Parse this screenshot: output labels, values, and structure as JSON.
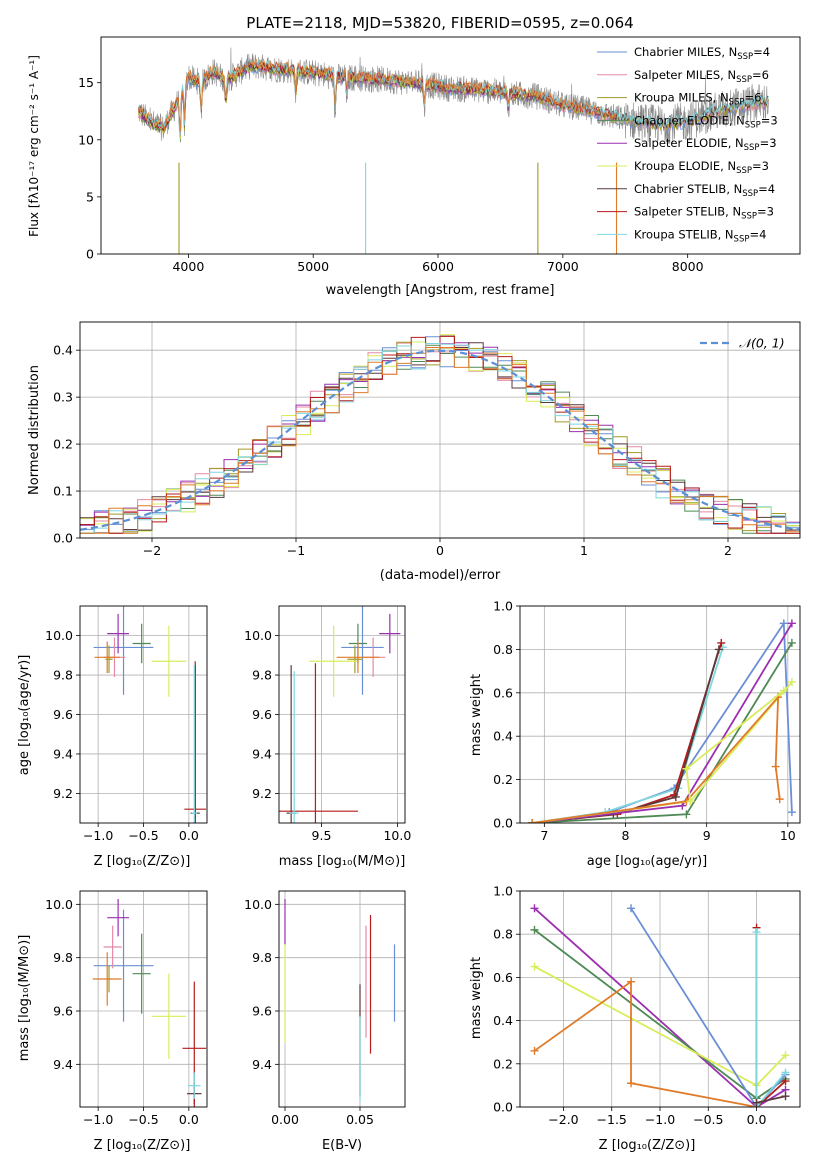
{
  "figure": {
    "title": "PLATE=2118, MJD=53820, FIBERID=0595, z=0.064"
  },
  "colors": {
    "Chabrier MILES": "#6a8fd6",
    "Salpeter MILES": "#e58aa6",
    "Kroupa MILES": "#a29a24",
    "Chabrier ELODIE": "#4f8a56",
    "Salpeter ELODIE": "#9c2fb0",
    "Kroupa ELODIE": "#d9ec5a",
    "Chabrier STELIB": "#5a3a3a",
    "Salpeter STELIB": "#b51c1c",
    "Kroupa STELIB": "#7fd8e0",
    "orange": "#e07b2a",
    "gray_spec": "#888888",
    "gauss": "#5b8fd6"
  },
  "chart_data": [
    {
      "id": "spectrum",
      "type": "line",
      "title": "PLATE=2118, MJD=53820, FIBERID=0595, z=0.064",
      "xlabel": "wavelength [Angstrom, rest frame]",
      "ylabel": "Flux [fλ10⁻¹⁷ erg cm⁻² s⁻¹ A⁻¹]",
      "xlim": [
        3300,
        8900
      ],
      "ylim": [
        0,
        19
      ],
      "xticks": [
        "4000",
        "5000",
        "6000",
        "7000",
        "8000"
      ],
      "yticks": [
        "0",
        "5",
        "10",
        "15"
      ],
      "legend_position": "upper right",
      "legend": [
        "Chabrier MILES, N_SSP=4",
        "Salpeter MILES, N_SSP=6",
        "Kroupa MILES, N_SSP=6",
        "Chabrier ELODIE, N_SSP=3",
        "Salpeter ELODIE, N_SSP=3",
        "Kroupa ELODIE, N_SSP=3",
        "Chabrier STELIB, N_SSP=4",
        "Salpeter STELIB, N_SSP=3",
        "Kroupa STELIB, N_SSP=4"
      ],
      "continuum": {
        "x": [
          3600,
          3700,
          3800,
          3900,
          4000,
          4100,
          4200,
          4300,
          4500,
          4700,
          4900,
          5200,
          5500,
          5800,
          6100,
          6400,
          6600,
          6800,
          7000,
          7200,
          7400,
          7600,
          7800,
          8000,
          8200,
          8400,
          8600
        ],
        "y": [
          12.5,
          11.5,
          11.0,
          13.0,
          15.5,
          15.0,
          16.0,
          15.2,
          16.5,
          16.2,
          16.0,
          15.5,
          15.3,
          15.0,
          14.5,
          14.3,
          14.0,
          13.8,
          13.0,
          12.6,
          12.0,
          11.6,
          11.3,
          11.6,
          12.4,
          12.9,
          13.3
        ]
      }
    },
    {
      "id": "residuals",
      "type": "line",
      "xlabel": "(data-model)/error",
      "ylabel": "Normed distribution",
      "xlim": [
        -2.5,
        2.5
      ],
      "ylim": [
        0,
        0.46
      ],
      "xticks": [
        "−2",
        "−1",
        "0",
        "1",
        "2"
      ],
      "yticks": [
        "0.0",
        "0.1",
        "0.2",
        "0.3",
        "0.4"
      ],
      "grid": true,
      "legend": [
        "𝒩(0, 1)"
      ],
      "legend_position": "upper right",
      "bin_width": 0.1,
      "bin_start": -2.5
    },
    {
      "id": "z_age",
      "type": "scatter",
      "xlabel": "Z [log₁₀(Z/Z⊙)]",
      "ylabel": "age  [log₁₀(age/yr)]",
      "xlim": [
        -1.2,
        0.2
      ],
      "ylim": [
        9.05,
        10.15
      ],
      "xticks": [
        "−1.0",
        "−0.5",
        "0.0"
      ],
      "yticks": [
        "9.2",
        "9.4",
        "9.6",
        "9.8",
        "10.0"
      ],
      "grid": true,
      "points": [
        {
          "series": "Chabrier MILES",
          "x": -0.72,
          "y": 9.94,
          "dx": 0.33,
          "dy": 0.24
        },
        {
          "series": "Salpeter MILES",
          "x": -0.82,
          "y": 9.89,
          "dx": 0.12,
          "dy": 0.1
        },
        {
          "series": "Kroupa MILES",
          "x": -0.88,
          "y": 9.88,
          "dx": 0.04,
          "dy": 0.07
        },
        {
          "series": "Chabrier ELODIE",
          "x": -0.52,
          "y": 9.96,
          "dx": 0.1,
          "dy": 0.1
        },
        {
          "series": "Salpeter ELODIE",
          "x": -0.78,
          "y": 10.01,
          "dx": 0.12,
          "dy": 0.1
        },
        {
          "series": "Kroupa ELODIE",
          "x": -0.22,
          "y": 9.87,
          "dx": 0.19,
          "dy": 0.18
        },
        {
          "series": "Chabrier STELIB",
          "x": 0.07,
          "y": 9.1,
          "dx": 0.05,
          "dy": 0.75
        },
        {
          "series": "Salpeter STELIB",
          "x": 0.07,
          "y": 9.12,
          "dx": 0.12,
          "dy": 0.75
        },
        {
          "series": "Kroupa STELIB",
          "x": 0.06,
          "y": 9.1,
          "dx": 0.03,
          "dy": 0.75
        },
        {
          "series": "orange",
          "x": -0.9,
          "y": 9.89,
          "dx": 0.14,
          "dy": 0.08
        }
      ]
    },
    {
      "id": "mass_age",
      "type": "scatter",
      "xlabel": "mass [log₁₀(M/M⊙)]",
      "ylabel": "",
      "xlim": [
        9.22,
        10.05
      ],
      "ylim": [
        9.05,
        10.15
      ],
      "xticks": [
        "9.5",
        "10.0"
      ],
      "yticks": [
        "9.2",
        "9.4",
        "9.6",
        "9.8",
        "10.0"
      ],
      "grid": true,
      "points": [
        {
          "series": "Chabrier MILES",
          "x": 9.77,
          "y": 9.94,
          "dx": 0.14,
          "dy": 0.24
        },
        {
          "series": "Salpeter MILES",
          "x": 9.84,
          "y": 9.89,
          "dx": 0.08,
          "dy": 0.1
        },
        {
          "series": "Kroupa MILES",
          "x": 9.72,
          "y": 9.88,
          "dx": 0.05,
          "dy": 0.07
        },
        {
          "series": "Chabrier ELODIE",
          "x": 9.74,
          "y": 9.96,
          "dx": 0.06,
          "dy": 0.1
        },
        {
          "series": "Salpeter ELODIE",
          "x": 9.95,
          "y": 10.01,
          "dx": 0.07,
          "dy": 0.1
        },
        {
          "series": "Kroupa ELODIE",
          "x": 9.58,
          "y": 9.87,
          "dx": 0.16,
          "dy": 0.18
        },
        {
          "series": "Chabrier STELIB",
          "x": 9.3,
          "y": 9.1,
          "dx": 0.03,
          "dy": 0.75
        },
        {
          "series": "Salpeter STELIB",
          "x": 9.46,
          "y": 9.11,
          "dx": 0.28,
          "dy": 0.75
        },
        {
          "series": "Kroupa STELIB",
          "x": 9.32,
          "y": 9.1,
          "dx": 0.03,
          "dy": 0.72
        },
        {
          "series": "orange",
          "x": 9.74,
          "y": 9.89,
          "dx": 0.14,
          "dy": 0.08
        }
      ]
    },
    {
      "id": "age_weight",
      "type": "line",
      "xlabel": "age  [log₁₀(age/yr)]",
      "ylabel": "mass weight",
      "xlim": [
        6.7,
        10.15
      ],
      "ylim": [
        0,
        1
      ],
      "xticks": [
        "7",
        "8",
        "9",
        "10"
      ],
      "yticks": [
        "0.0",
        "0.2",
        "0.4",
        "0.6",
        "0.8",
        "1.0"
      ],
      "grid": true,
      "series": [
        {
          "key": "Chabrier MILES",
          "x": [
            6.85,
            7.8,
            8.6,
            9.95,
            10.05
          ],
          "y": [
            0.0,
            0.05,
            0.16,
            0.92,
            0.05
          ]
        },
        {
          "key": "Kroupa STELIB",
          "x": [
            6.85,
            7.75,
            8.65,
            9.2
          ],
          "y": [
            0.0,
            0.05,
            0.16,
            0.81
          ]
        },
        {
          "key": "Salpeter STELIB",
          "x": [
            6.85,
            7.9,
            8.6,
            9.18
          ],
          "y": [
            0.0,
            0.04,
            0.13,
            0.83
          ]
        },
        {
          "key": "Chabrier STELIB",
          "x": [
            6.85,
            7.85,
            8.62,
            9.15
          ],
          "y": [
            0.0,
            0.04,
            0.12,
            0.8
          ]
        },
        {
          "key": "Chabrier ELODIE",
          "x": [
            6.85,
            8.75,
            10.05
          ],
          "y": [
            0.0,
            0.04,
            0.83
          ]
        },
        {
          "key": "Salpeter ELODIE",
          "x": [
            6.85,
            8.7,
            10.05
          ],
          "y": [
            0.0,
            0.08,
            0.92
          ]
        },
        {
          "key": "Kroupa ELODIE",
          "x": [
            6.85,
            8.8,
            10.05
          ],
          "y": [
            0.0,
            0.1,
            0.65
          ]
        },
        {
          "key": "orange",
          "x": [
            6.85,
            8.75,
            9.88,
            9.85,
            9.9
          ],
          "y": [
            0.0,
            0.1,
            0.58,
            0.26,
            0.11
          ]
        },
        {
          "key": "Kroupa ELODIE",
          "x": [
            8.8,
            8.75,
            9.95
          ],
          "y": [
            0.1,
            0.25,
            0.61
          ]
        }
      ]
    },
    {
      "id": "z_mass",
      "type": "scatter",
      "xlabel": "Z [log₁₀(Z/Z⊙)]",
      "ylabel": "mass [log₁₀(M/M⊙)]",
      "xlim": [
        -1.2,
        0.2
      ],
      "ylim": [
        9.24,
        10.05
      ],
      "xticks": [
        "−1.0",
        "−0.5",
        "0.0"
      ],
      "yticks": [
        "9.4",
        "9.6",
        "9.8",
        "10.0"
      ],
      "grid": true,
      "points": [
        {
          "series": "Chabrier MILES",
          "x": -0.72,
          "y": 9.77,
          "dx": 0.33,
          "dy": 0.21
        },
        {
          "series": "Salpeter MILES",
          "x": -0.84,
          "y": 9.84,
          "dx": 0.1,
          "dy": 0.08
        },
        {
          "series": "Kroupa MILES",
          "x": -0.88,
          "y": 9.72,
          "dx": 0.03,
          "dy": 0.05
        },
        {
          "series": "Chabrier ELODIE",
          "x": -0.52,
          "y": 9.74,
          "dx": 0.1,
          "dy": 0.15
        },
        {
          "series": "Salpeter ELODIE",
          "x": -0.78,
          "y": 9.95,
          "dx": 0.12,
          "dy": 0.07
        },
        {
          "series": "Kroupa ELODIE",
          "x": -0.22,
          "y": 9.58,
          "dx": 0.19,
          "dy": 0.16
        },
        {
          "series": "Chabrier STELIB",
          "x": 0.06,
          "y": 9.29,
          "dx": 0.08,
          "dy": 0.04
        },
        {
          "series": "Salpeter STELIB",
          "x": 0.06,
          "y": 9.46,
          "dx": 0.13,
          "dy": 0.25
        },
        {
          "series": "Kroupa STELIB",
          "x": 0.06,
          "y": 9.32,
          "dx": 0.07,
          "dy": 0.05
        },
        {
          "series": "orange",
          "x": -0.9,
          "y": 9.72,
          "dx": 0.16,
          "dy": 0.1
        }
      ]
    },
    {
      "id": "ebv_mass",
      "type": "scatter",
      "xlabel": "E(B-V)",
      "ylabel": "",
      "xlim": [
        -0.004,
        0.08
      ],
      "ylim": [
        9.24,
        10.05
      ],
      "xticks": [
        "0.00",
        "0.05"
      ],
      "yticks": [
        "9.4",
        "9.6",
        "9.8",
        "10.0"
      ],
      "grid": true,
      "segments": [
        {
          "series": "Salpeter ELODIE",
          "x": 0.0,
          "y0": 9.85,
          "y1": 10.02
        },
        {
          "series": "Kroupa ELODIE",
          "x": 0.0,
          "y0": 9.48,
          "y1": 9.85
        },
        {
          "series": "Chabrier STELIB",
          "x": 0.05,
          "y0": 9.28,
          "y1": 9.7
        },
        {
          "series": "Kroupa STELIB",
          "x": 0.05,
          "y0": 9.26,
          "y1": 9.58
        },
        {
          "series": "Salpeter MILES",
          "x": 0.054,
          "y0": 9.5,
          "y1": 9.92
        },
        {
          "series": "Salpeter STELIB",
          "x": 0.057,
          "y0": 9.44,
          "y1": 9.96
        },
        {
          "series": "Chabrier MILES",
          "x": 0.073,
          "y0": 9.56,
          "y1": 9.85
        }
      ]
    },
    {
      "id": "z_weight",
      "type": "line",
      "xlabel": "Z [log₁₀(Z/Z⊙)]",
      "ylabel": "mass weight",
      "xlim": [
        -2.45,
        0.45
      ],
      "ylim": [
        0,
        1
      ],
      "xticks": [
        "−2.0",
        "−1.5",
        "−1.0",
        "−0.5",
        "0.0"
      ],
      "yticks": [
        "0.0",
        "0.2",
        "0.4",
        "0.6",
        "0.8",
        "1.0"
      ],
      "grid": true,
      "series": [
        {
          "key": "Salpeter ELODIE",
          "x": [
            -2.3,
            0.0,
            0.3
          ],
          "y": [
            0.92,
            0.0,
            0.08
          ]
        },
        {
          "key": "Chabrier ELODIE",
          "x": [
            -2.3,
            0.0,
            0.3
          ],
          "y": [
            0.82,
            0.04,
            0.13
          ]
        },
        {
          "key": "Kroupa ELODIE",
          "x": [
            -2.3,
            0.0,
            0.3
          ],
          "y": [
            0.65,
            0.1,
            0.24
          ]
        },
        {
          "key": "Chabrier MILES",
          "x": [
            -1.3,
            0.0,
            0.3
          ],
          "y": [
            0.92,
            0.0,
            0.15
          ]
        },
        {
          "key": "orange",
          "x": [
            -2.3,
            -1.3,
            -1.3,
            0.0
          ],
          "y": [
            0.26,
            0.58,
            0.11,
            0.0
          ]
        },
        {
          "key": "Salpeter STELIB",
          "x": [
            0.0,
            0.0,
            0.3
          ],
          "y": [
            0.83,
            0.0,
            0.12
          ]
        },
        {
          "key": "Kroupa STELIB",
          "x": [
            0.0,
            0.0,
            0.3
          ],
          "y": [
            0.81,
            0.0,
            0.16
          ]
        },
        {
          "key": "Chabrier STELIB",
          "x": [
            0.0,
            0.3
          ],
          "y": [
            0.02,
            0.05
          ]
        }
      ]
    }
  ]
}
